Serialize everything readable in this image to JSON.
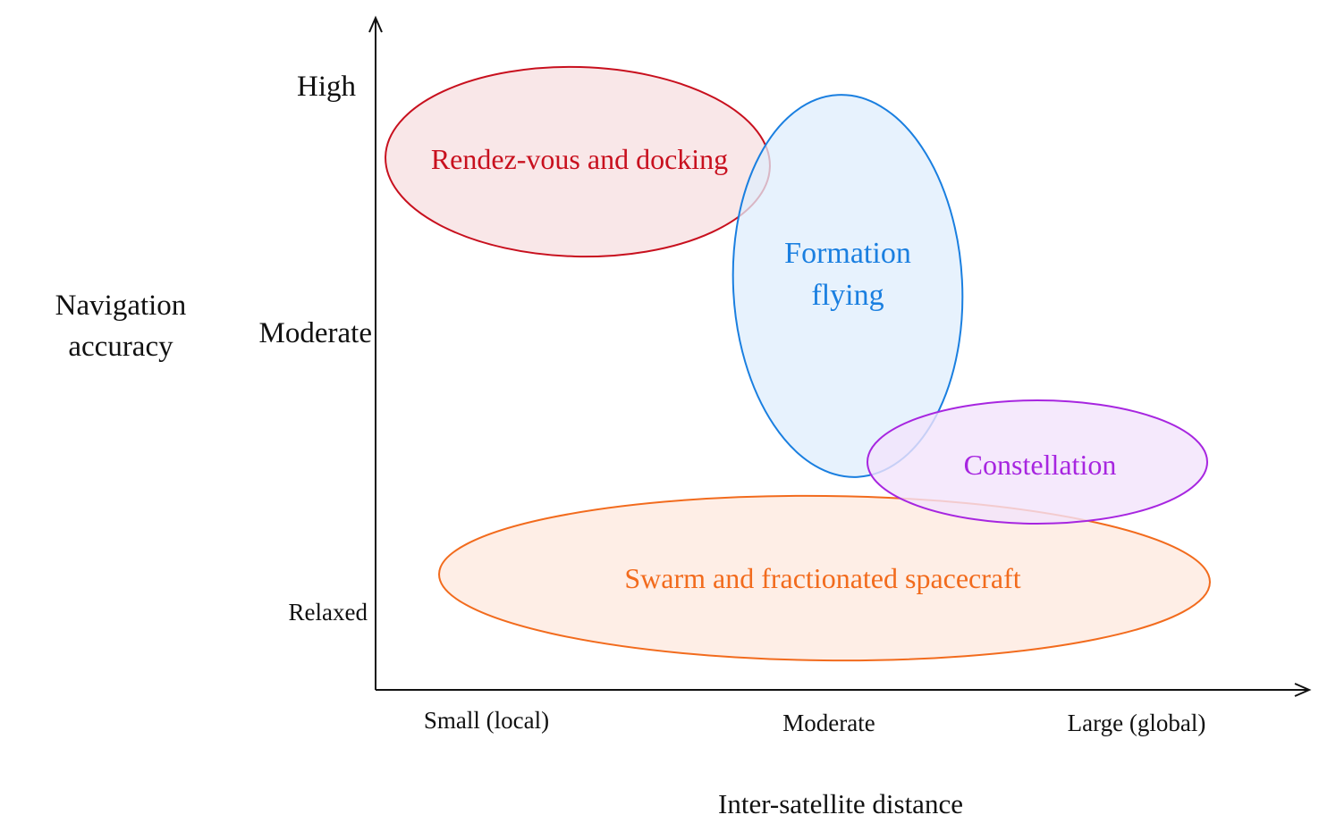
{
  "y_axis": {
    "title_line1": "Navigation",
    "title_line2": "accuracy",
    "levels": [
      "High",
      "Moderate",
      "Relaxed"
    ]
  },
  "x_axis": {
    "title": "Inter-satellite distance",
    "levels": [
      "Small (local)",
      "Moderate",
      "Large (global)"
    ]
  },
  "regions": [
    {
      "id": "rendezvous",
      "label_lines": [
        "Rendez-vous and docking"
      ],
      "stroke": "#c8101e",
      "fill": "#f8e3e4"
    },
    {
      "id": "formation",
      "label_lines": [
        "Formation",
        "flying"
      ],
      "stroke": "#1a7fe0",
      "fill": "#dfeefc"
    },
    {
      "id": "constellation",
      "label_lines": [
        "Constellation"
      ],
      "stroke": "#a726e0",
      "fill": "#f2e3fb"
    },
    {
      "id": "swarm",
      "label_lines": [
        "Swarm and fractionated spacecraft"
      ],
      "stroke": "#f26b1d",
      "fill": "#feece3"
    }
  ]
}
